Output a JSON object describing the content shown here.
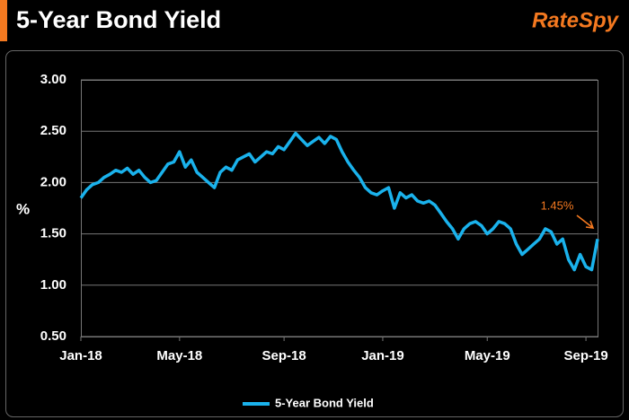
{
  "chart_data": {
    "type": "line",
    "title": "5-Year Bond Yield",
    "brand": "RateSpy",
    "y_label": "%",
    "annotation": "1.45%",
    "categories": [
      "Jan-18",
      null,
      null,
      null,
      null,
      null,
      null,
      null,
      null,
      null,
      null,
      null,
      null,
      null,
      null,
      null,
      null,
      "May-18",
      null,
      null,
      null,
      null,
      null,
      null,
      null,
      null,
      null,
      null,
      null,
      null,
      null,
      null,
      null,
      null,
      null,
      "Sep-18",
      null,
      null,
      null,
      null,
      null,
      null,
      null,
      null,
      null,
      null,
      null,
      null,
      null,
      null,
      null,
      null,
      "Jan-19",
      null,
      null,
      null,
      null,
      null,
      null,
      null,
      null,
      null,
      null,
      null,
      null,
      null,
      null,
      null,
      null,
      null,
      "May-19",
      null,
      null,
      null,
      null,
      null,
      null,
      null,
      null,
      null,
      null,
      null,
      null,
      null,
      null,
      null,
      null,
      "Sep-19",
      null,
      null
    ],
    "series": [
      {
        "name": "5-Year Bond Yield",
        "color": "#1ab2ec",
        "values": [
          1.85,
          1.93,
          1.98,
          2.0,
          2.05,
          2.08,
          2.12,
          2.1,
          2.14,
          2.08,
          2.12,
          2.05,
          2.0,
          2.02,
          2.1,
          2.18,
          2.2,
          2.3,
          2.15,
          2.22,
          2.1,
          2.05,
          2.0,
          1.95,
          2.1,
          2.15,
          2.12,
          2.22,
          2.25,
          2.28,
          2.2,
          2.25,
          2.3,
          2.28,
          2.35,
          2.32,
          2.4,
          2.48,
          2.42,
          2.36,
          2.4,
          2.44,
          2.38,
          2.45,
          2.42,
          2.3,
          2.2,
          2.12,
          2.05,
          1.95,
          1.9,
          1.88,
          1.92,
          1.95,
          1.75,
          1.9,
          1.85,
          1.88,
          1.82,
          1.8,
          1.82,
          1.78,
          1.7,
          1.62,
          1.55,
          1.45,
          1.55,
          1.6,
          1.62,
          1.58,
          1.5,
          1.55,
          1.62,
          1.6,
          1.55,
          1.4,
          1.3,
          1.35,
          1.4,
          1.45,
          1.55,
          1.52,
          1.4,
          1.45,
          1.25,
          1.15,
          1.3,
          1.18,
          1.15,
          1.45
        ]
      }
    ],
    "ylim": [
      0.5,
      3.0
    ],
    "yticks": [
      {
        "value": 0.5,
        "label": "0.50"
      },
      {
        "value": 1.0,
        "label": "1.00"
      },
      {
        "value": 1.5,
        "label": "1.50"
      },
      {
        "value": 2.0,
        "label": "2.00"
      },
      {
        "value": 2.5,
        "label": "2.50"
      },
      {
        "value": 3.0,
        "label": "3.00"
      }
    ],
    "grid": true
  }
}
